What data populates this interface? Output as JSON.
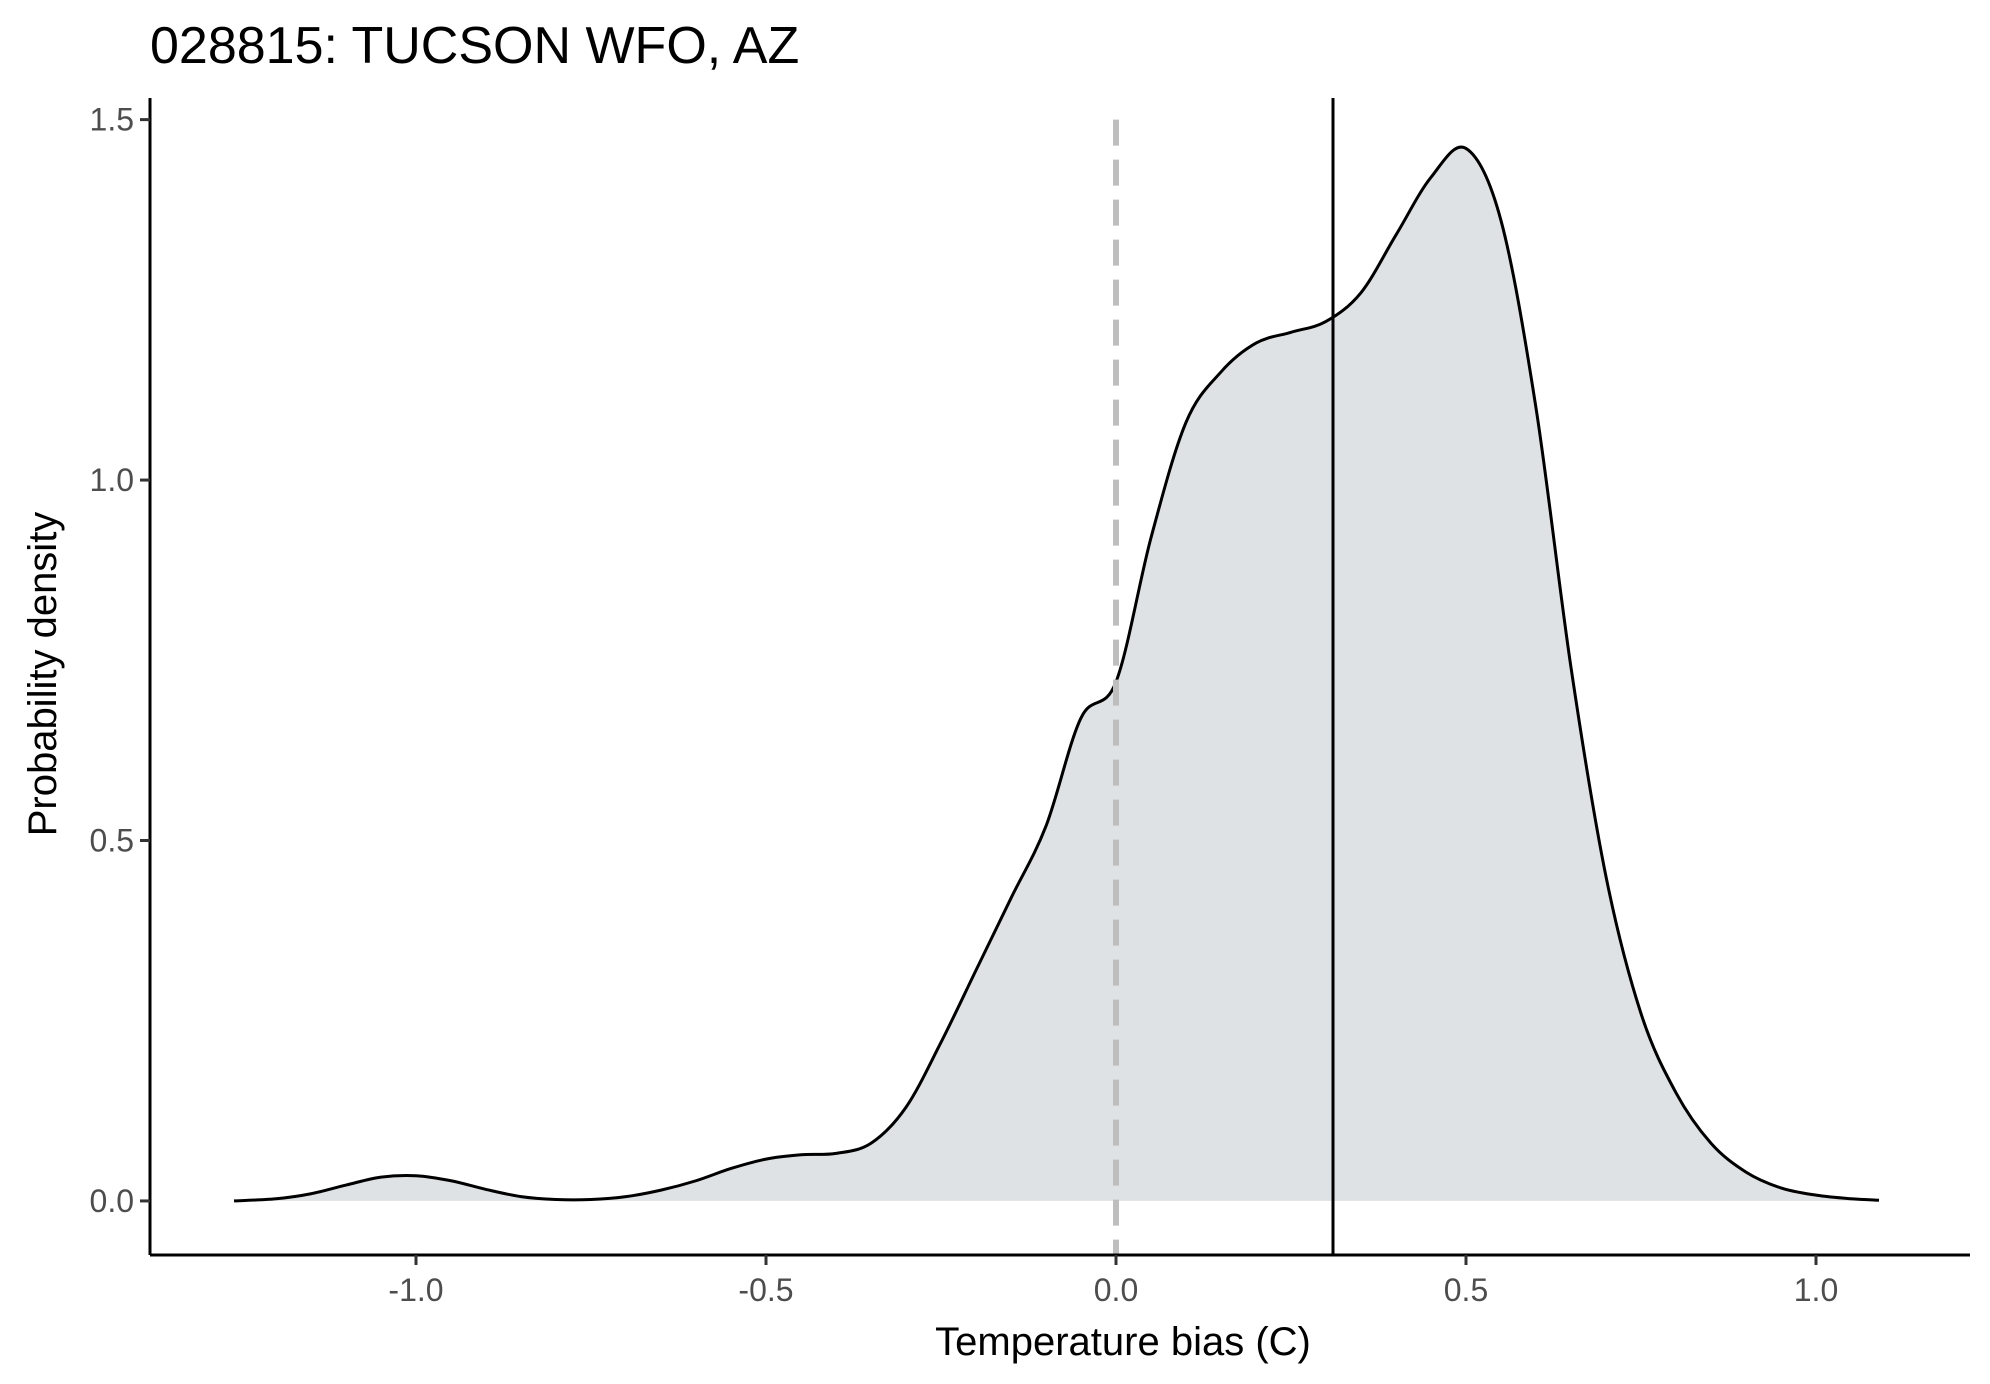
{
  "chart_data": {
    "type": "area",
    "title": "028815: TUCSON WFO, AZ",
    "xlabel": "Temperature bias (C)",
    "ylabel": "Probability density",
    "xlim": [
      -1.38,
      1.22
    ],
    "ylim": [
      -0.075,
      1.53
    ],
    "x_ticks": [
      -1.0,
      -0.5,
      0.0,
      0.5,
      1.0
    ],
    "x_tick_labels": [
      "-1.0",
      "-0.5",
      "0.0",
      "0.5",
      "1.0"
    ],
    "y_ticks": [
      0.0,
      0.5,
      1.0,
      1.5
    ],
    "y_tick_labels": [
      "0.0",
      "0.5",
      "1.0",
      "1.5"
    ],
    "grid": false,
    "legend": "none",
    "series": [
      {
        "x": [
          -1.26,
          -1.2,
          -1.15,
          -1.1,
          -1.05,
          -1.0,
          -0.95,
          -0.9,
          -0.85,
          -0.8,
          -0.75,
          -0.7,
          -0.65,
          -0.6,
          -0.55,
          -0.5,
          -0.45,
          -0.4,
          -0.35,
          -0.3,
          -0.25,
          -0.2,
          -0.15,
          -0.1,
          -0.05,
          0.0,
          0.05,
          0.1,
          0.15,
          0.2,
          0.25,
          0.3,
          0.35,
          0.4,
          0.45,
          0.5,
          0.55,
          0.6,
          0.65,
          0.7,
          0.75,
          0.8,
          0.85,
          0.9,
          0.95,
          1.0,
          1.05,
          1.09
        ],
        "y": [
          0.0,
          0.003,
          0.01,
          0.022,
          0.033,
          0.035,
          0.028,
          0.016,
          0.006,
          0.002,
          0.002,
          0.006,
          0.015,
          0.028,
          0.045,
          0.058,
          0.064,
          0.066,
          0.08,
          0.13,
          0.22,
          0.32,
          0.42,
          0.52,
          0.67,
          0.72,
          0.92,
          1.08,
          1.15,
          1.19,
          1.205,
          1.22,
          1.26,
          1.34,
          1.42,
          1.46,
          1.36,
          1.1,
          0.74,
          0.45,
          0.26,
          0.15,
          0.08,
          0.04,
          0.018,
          0.008,
          0.003,
          0.001
        ],
        "fill_color": "#dfe2e4",
        "line_color": "#000000"
      }
    ],
    "reference_lines": [
      {
        "axis": "x",
        "value": 0.0,
        "style": "dashed",
        "color": "#bebebe"
      },
      {
        "axis": "x",
        "value": 0.31,
        "style": "solid",
        "color": "#000000"
      }
    ]
  }
}
